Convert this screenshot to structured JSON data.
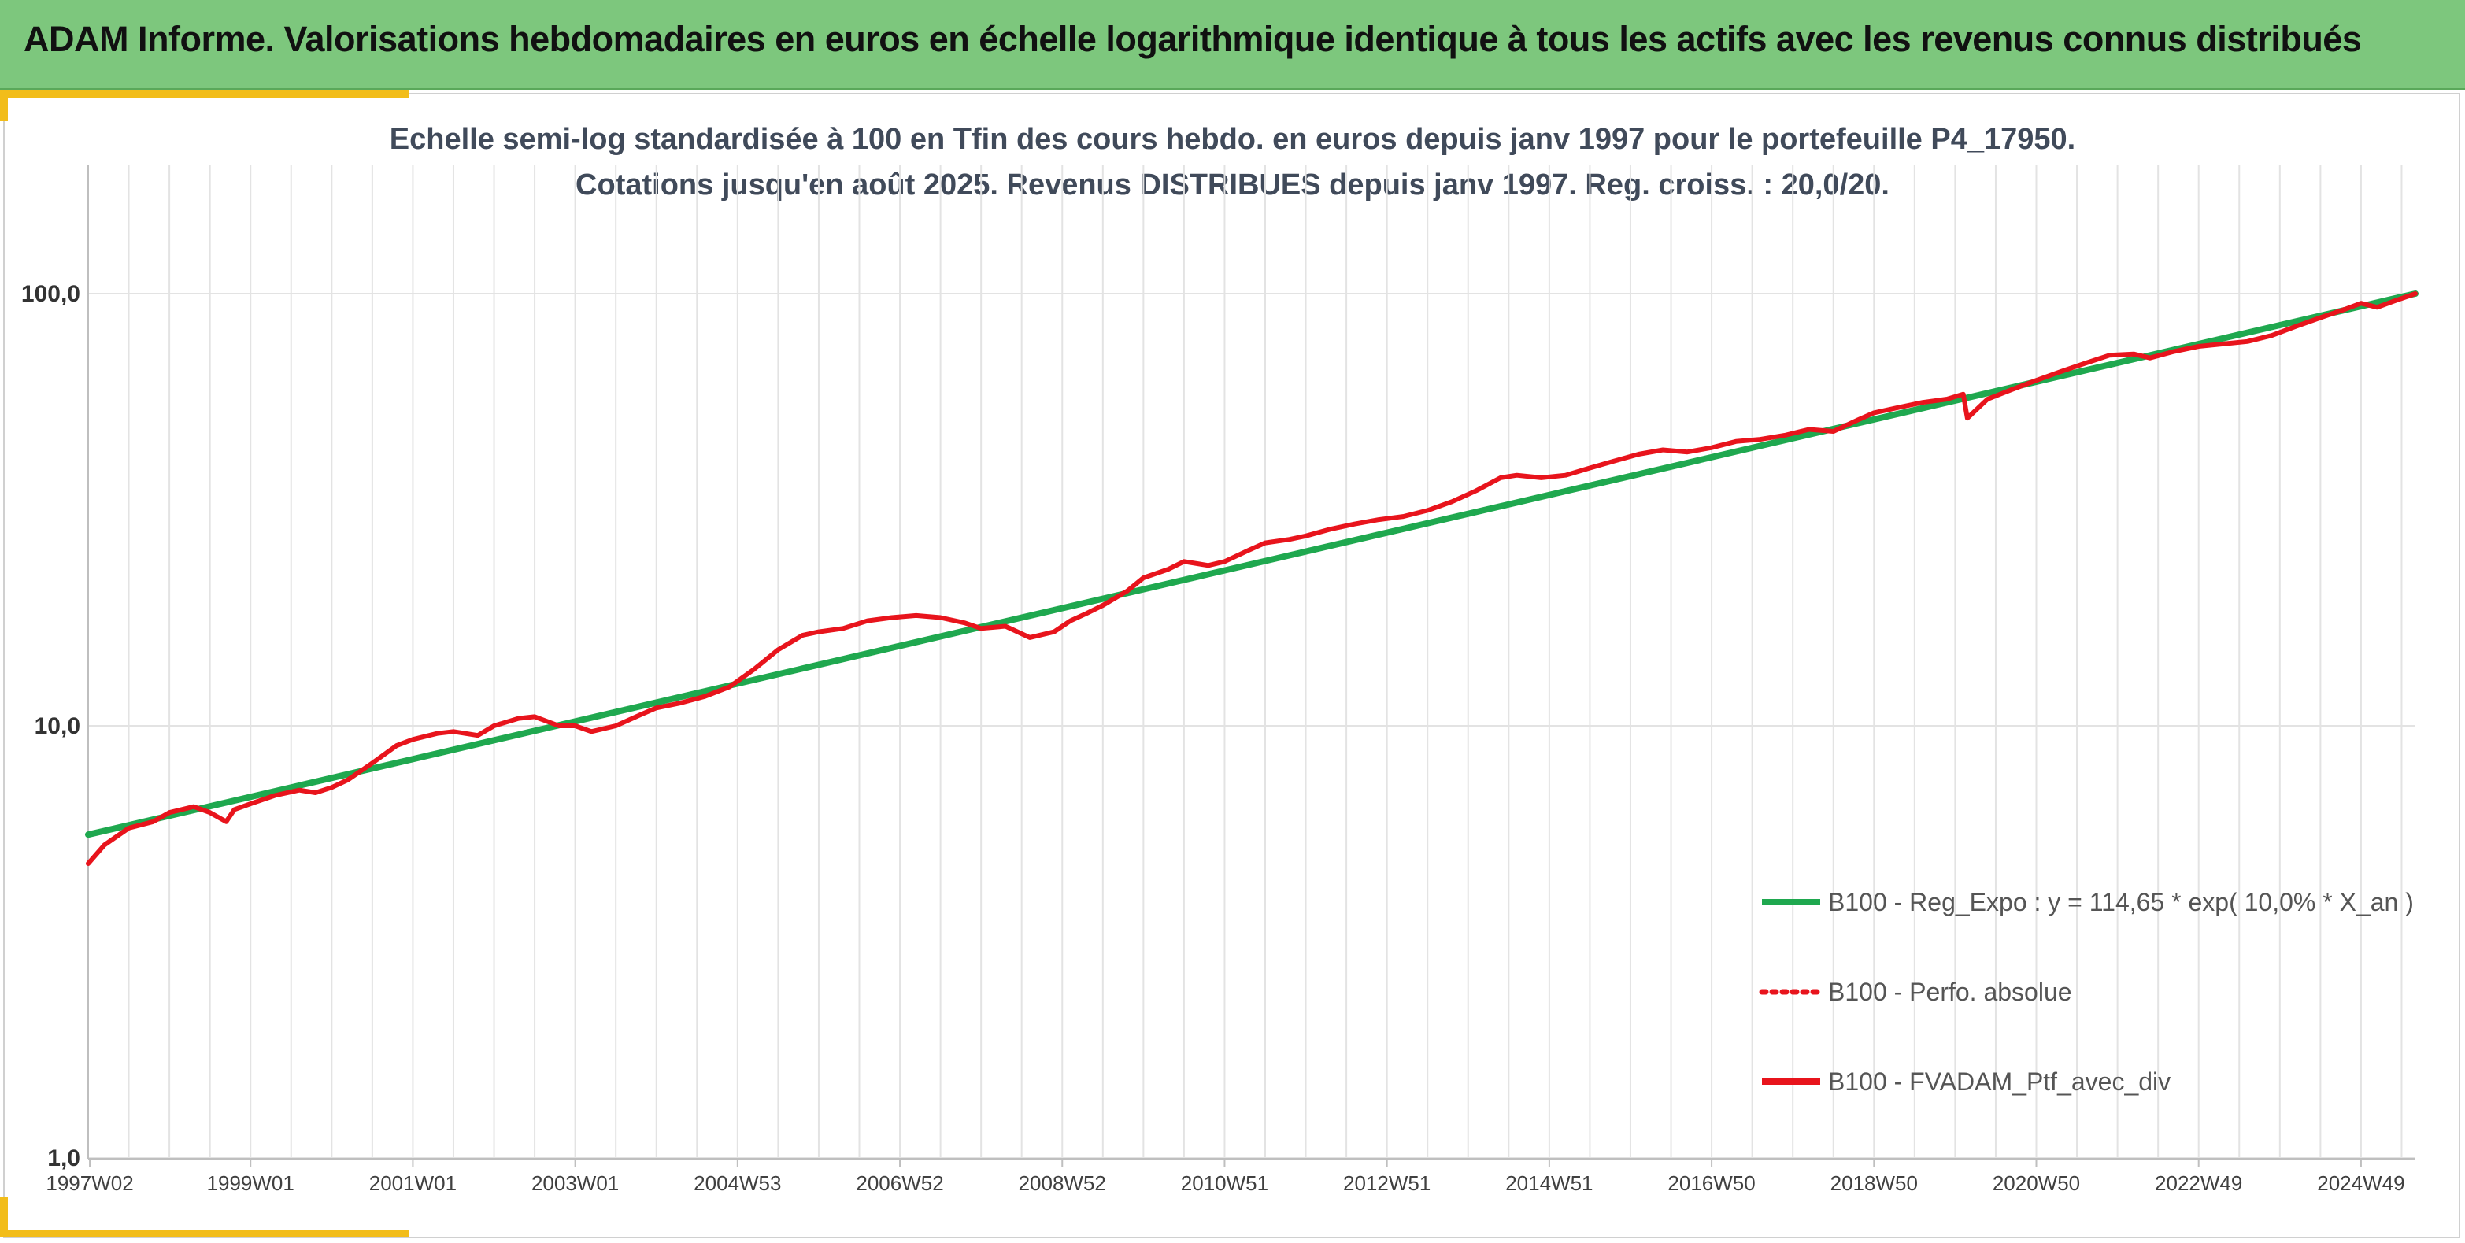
{
  "header": {
    "title": "ADAM Informe. Valorisations hebdomadaires en euros en échelle logarithmique identique à tous les actifs avec les revenus connus distribués"
  },
  "chart_data": {
    "type": "line",
    "title": "Echelle semi-log standardisée à 100 en Tfin des cours hebdo. en euros depuis janv 1997 pour le portefeuille P4_17950.",
    "subtitle": "Cotations jusqu'en août 2025. Revenus DISTRIBUES depuis janv 1997. Reg. croiss. : 20,0/20.",
    "xlabel": "",
    "ylabel": "",
    "yscale": "log",
    "ylim": [
      1,
      200
    ],
    "xlim": [
      1997.0,
      2025.67
    ],
    "y_ticks": [
      {
        "value": 1,
        "label": "1,0"
      },
      {
        "value": 10,
        "label": "10,0"
      },
      {
        "value": 100,
        "label": "100,0"
      }
    ],
    "x_ticks": [
      {
        "value": 1997.02,
        "label": "1997W02"
      },
      {
        "value": 1999.0,
        "label": "1999W01"
      },
      {
        "value": 2001.0,
        "label": "2001W01"
      },
      {
        "value": 2003.0,
        "label": "2003W01"
      },
      {
        "value": 2005.0,
        "label": "2004W53"
      },
      {
        "value": 2007.0,
        "label": "2006W52"
      },
      {
        "value": 2009.0,
        "label": "2008W52"
      },
      {
        "value": 2011.0,
        "label": "2010W51"
      },
      {
        "value": 2013.0,
        "label": "2012W51"
      },
      {
        "value": 2015.0,
        "label": "2014W51"
      },
      {
        "value": 2017.0,
        "label": "2016W50"
      },
      {
        "value": 2019.0,
        "label": "2018W50"
      },
      {
        "value": 2021.0,
        "label": "2020W50"
      },
      {
        "value": 2023.0,
        "label": "2022W49"
      },
      {
        "value": 2025.0,
        "label": "2024W49"
      }
    ],
    "grid": "vertical",
    "legend_position": "bottom-right",
    "series": [
      {
        "name": "B100 - Reg_Expo : y = 114,65 * exp( 10,0% *  X_an )",
        "color": "#1fa84f",
        "style": "solid",
        "x": [
          1997.0,
          2025.67
        ],
        "y": [
          5.6,
          100.0
        ]
      },
      {
        "name": "B100 - Perfo. absolue",
        "color": "#e8141c",
        "style": "dotted",
        "x": [],
        "y": []
      },
      {
        "name": "B100 - FVADAM_Ptf_avec_div",
        "color": "#e8141c",
        "style": "solid",
        "x": [
          1997.0,
          1997.2,
          1997.5,
          1997.8,
          1998.0,
          1998.3,
          1998.5,
          1998.7,
          1998.8,
          1999.0,
          1999.3,
          1999.6,
          1999.8,
          2000.0,
          2000.2,
          2000.5,
          2000.8,
          2001.0,
          2001.3,
          2001.5,
          2001.8,
          2002.0,
          2002.3,
          2002.5,
          2002.8,
          2003.0,
          2003.2,
          2003.5,
          2003.8,
          2004.0,
          2004.3,
          2004.6,
          2004.9,
          2005.2,
          2005.5,
          2005.8,
          2006.0,
          2006.3,
          2006.6,
          2006.9,
          2007.2,
          2007.5,
          2007.8,
          2008.0,
          2008.3,
          2008.6,
          2008.9,
          2009.1,
          2009.3,
          2009.5,
          2009.8,
          2010.0,
          2010.3,
          2010.5,
          2010.8,
          2011.0,
          2011.3,
          2011.5,
          2011.8,
          2012.0,
          2012.3,
          2012.6,
          2012.9,
          2013.2,
          2013.5,
          2013.8,
          2014.1,
          2014.4,
          2014.6,
          2014.9,
          2015.2,
          2015.5,
          2015.8,
          2016.1,
          2016.4,
          2016.7,
          2017.0,
          2017.3,
          2017.6,
          2017.9,
          2018.2,
          2018.5,
          2018.8,
          2019.0,
          2019.3,
          2019.6,
          2019.9,
          2020.1,
          2020.15,
          2020.4,
          2020.7,
          2021.0,
          2021.3,
          2021.6,
          2021.9,
          2022.2,
          2022.4,
          2022.7,
          2023.0,
          2023.3,
          2023.6,
          2023.9,
          2024.2,
          2024.5,
          2024.8,
          2025.0,
          2025.2,
          2025.4,
          2025.67
        ],
        "y": [
          4.8,
          5.3,
          5.8,
          6.0,
          6.3,
          6.5,
          6.3,
          6.0,
          6.4,
          6.6,
          6.9,
          7.1,
          7.0,
          7.2,
          7.5,
          8.2,
          9.0,
          9.3,
          9.6,
          9.7,
          9.5,
          10.0,
          10.4,
          10.5,
          10.0,
          10.0,
          9.7,
          10.0,
          10.6,
          11.0,
          11.3,
          11.7,
          12.3,
          13.5,
          15.0,
          16.2,
          16.5,
          16.8,
          17.5,
          17.8,
          18.0,
          17.8,
          17.3,
          16.8,
          17.0,
          16.0,
          16.5,
          17.5,
          18.2,
          19.0,
          20.5,
          22.0,
          23.0,
          24.0,
          23.5,
          24.0,
          25.5,
          26.5,
          27.0,
          27.5,
          28.5,
          29.3,
          30.0,
          30.5,
          31.5,
          33.0,
          35.0,
          37.5,
          38.0,
          37.5,
          38.0,
          39.5,
          41.0,
          42.5,
          43.5,
          43.0,
          44.0,
          45.5,
          46.0,
          47.0,
          48.5,
          48.0,
          51.0,
          53.0,
          54.5,
          56.0,
          57.0,
          58.5,
          51.5,
          57.0,
          60.0,
          63.0,
          66.0,
          69.0,
          72.0,
          72.5,
          71.0,
          73.5,
          75.5,
          76.5,
          77.5,
          80.0,
          84.0,
          88.0,
          92.0,
          95.0,
          93.0,
          96.0,
          100.0
        ]
      }
    ]
  }
}
